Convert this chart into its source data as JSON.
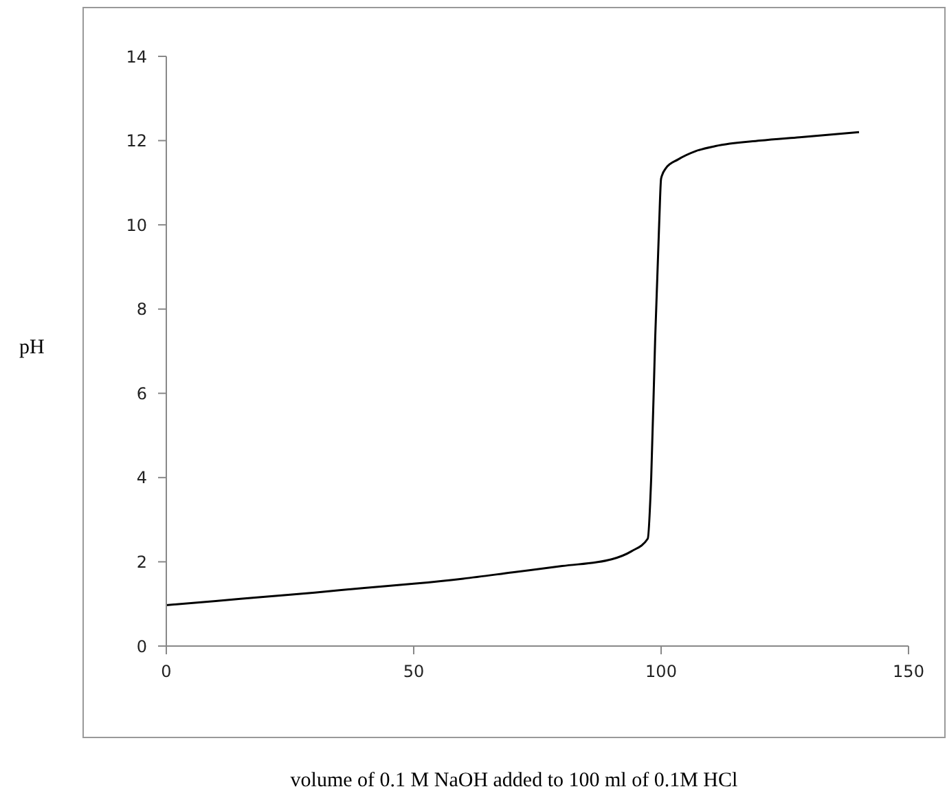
{
  "chart_data": {
    "type": "line",
    "xlabel": "volume of 0.1 M NaOH added to 100 ml of 0.1M HCl",
    "ylabel": "pH",
    "x": [
      0,
      10,
      20,
      30,
      40,
      50,
      60,
      70,
      80,
      90,
      94,
      97.3,
      98,
      98.8,
      99.6,
      100,
      101,
      103.4,
      107,
      111,
      120,
      128,
      140
    ],
    "series": [
      {
        "color": "#000000",
        "values": [
          0.97,
          1.07,
          1.17,
          1.27,
          1.38,
          1.48,
          1.6,
          1.75,
          1.9,
          2.06,
          2.25,
          2.55,
          4,
          7.3,
          10,
          11.1,
          11.35,
          11.55,
          11.75,
          11.87,
          12.0,
          12.08,
          12.2
        ]
      }
    ],
    "xlim": [
      0,
      150
    ],
    "xticks": [
      0,
      50,
      100,
      150
    ],
    "ylim": [
      0,
      14
    ],
    "yticks": [
      0,
      2,
      4,
      6,
      8,
      10,
      12,
      14
    ],
    "grid": false,
    "legend": false,
    "marker": "none",
    "line_style": "solid"
  }
}
